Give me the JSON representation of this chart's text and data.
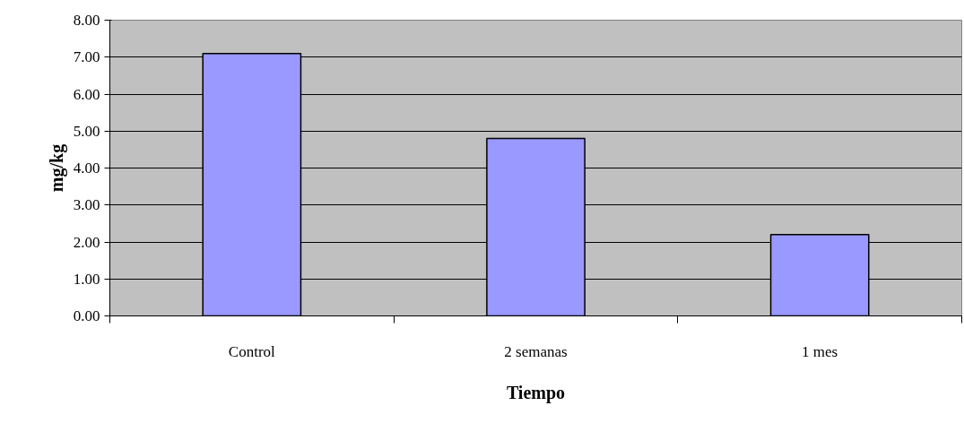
{
  "chart_data": {
    "type": "bar",
    "xlabel": "Tiempo",
    "ylabel": "mg/kg",
    "categories": [
      "Control",
      "2 semanas",
      "1 mes"
    ],
    "values": [
      7.1,
      4.8,
      2.2
    ],
    "color": "#9999ff",
    "ylim": [
      0,
      8
    ],
    "yticks": [
      {
        "value": 0,
        "label": "0.00"
      },
      {
        "value": 1,
        "label": "1.00"
      },
      {
        "value": 2,
        "label": "2.00"
      },
      {
        "value": 3,
        "label": "3.00"
      },
      {
        "value": 4,
        "label": "4.00"
      },
      {
        "value": 5,
        "label": "5.00"
      },
      {
        "value": 6,
        "label": "6.00"
      },
      {
        "value": 7,
        "label": "7.00"
      },
      {
        "value": 8,
        "label": "8.00"
      }
    ],
    "grid": "y"
  }
}
